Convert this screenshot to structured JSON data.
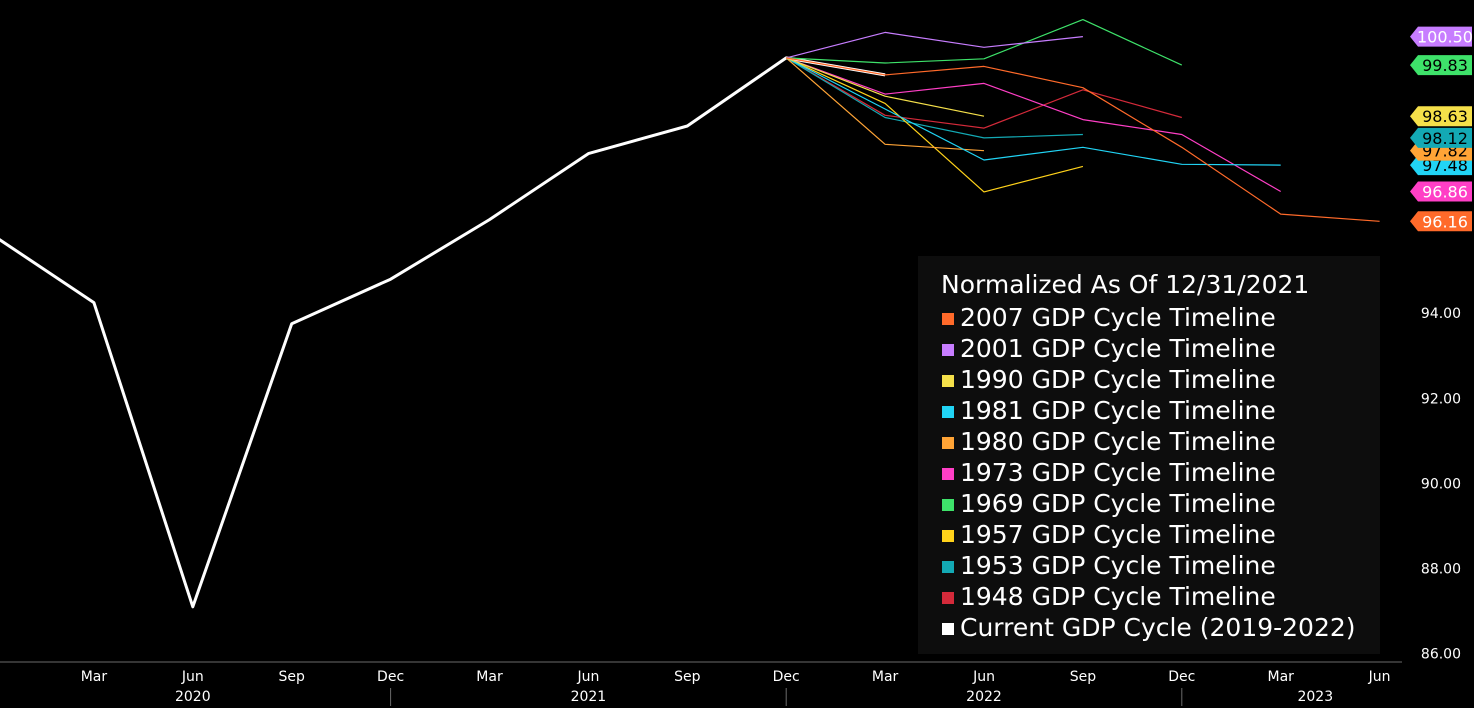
{
  "chart_data": {
    "type": "line",
    "y_axis": {
      "ticks": [
        "86.00",
        "88.00",
        "90.00",
        "92.00",
        "94.00"
      ],
      "tick_values": [
        86,
        88,
        90,
        92,
        94
      ],
      "range": [
        86,
        101.5
      ],
      "side": "right"
    },
    "x_axis": {
      "month_labels": [
        "Mar",
        "Jun",
        "Sep",
        "Dec",
        "Mar",
        "Jun",
        "Sep",
        "Dec",
        "Mar",
        "Jun",
        "Sep",
        "Dec",
        "Mar",
        "Jun"
      ],
      "year_labels": [
        "2020",
        "2021",
        "2022",
        "2023"
      ]
    },
    "legend": {
      "title": "Normalized As Of 12/31/2021",
      "placement": "bottom-right"
    },
    "series": [
      {
        "name": "2007 GDP Cycle Timeline",
        "color": "#ff6a2a",
        "label": "96.16",
        "y": [
          100.0,
          99.6,
          99.8,
          99.3,
          97.9,
          96.33,
          96.16
        ]
      },
      {
        "name": "2001 GDP Cycle Timeline",
        "color": "#c77dff",
        "label": "100.50",
        "y": [
          100.0,
          100.6,
          100.25,
          100.5
        ]
      },
      {
        "name": "1990 GDP Cycle Timeline",
        "color": "#f5e04a",
        "label": "98.63",
        "y": [
          100.0,
          99.1,
          98.63
        ]
      },
      {
        "name": "1981 GDP Cycle Timeline",
        "color": "#21d4f5",
        "label": "97.48",
        "y": [
          100.0,
          98.8,
          97.6,
          97.9,
          97.5,
          97.48
        ]
      },
      {
        "name": "1980 GDP Cycle Timeline",
        "color": "#ffa436",
        "label": "97.82",
        "y": [
          100.0,
          97.97,
          97.82
        ]
      },
      {
        "name": "1973 GDP Cycle Timeline",
        "color": "#ff3fc6",
        "label": "96.86",
        "y": [
          100.0,
          99.15,
          99.4,
          98.55,
          98.2,
          96.86
        ]
      },
      {
        "name": "1969 GDP Cycle Timeline",
        "color": "#3ee26a",
        "label": "99.83",
        "y": [
          100.0,
          99.88,
          99.98,
          100.9,
          99.83
        ]
      },
      {
        "name": "1957 GDP Cycle Timeline",
        "color": "#ffd21a",
        "label": "",
        "y": [
          100.0,
          98.93,
          96.85,
          97.45
        ]
      },
      {
        "name": "1953 GDP Cycle Timeline",
        "color": "#13a9b4",
        "label": "98.12",
        "y": [
          100.0,
          98.6,
          98.12,
          98.2
        ]
      },
      {
        "name": "1948 GDP Cycle Timeline",
        "color": "#d42a3a",
        "label": "",
        "y": [
          100.0,
          98.65,
          98.35,
          99.25,
          98.6
        ]
      },
      {
        "name": "Current GDP Cycle (2019-2022)",
        "color": "#ffffff",
        "label": "",
        "y": [
          95.8,
          94.25,
          87.1,
          93.75,
          94.8,
          96.2,
          97.75,
          98.4,
          100.0,
          99.6
        ]
      }
    ]
  }
}
